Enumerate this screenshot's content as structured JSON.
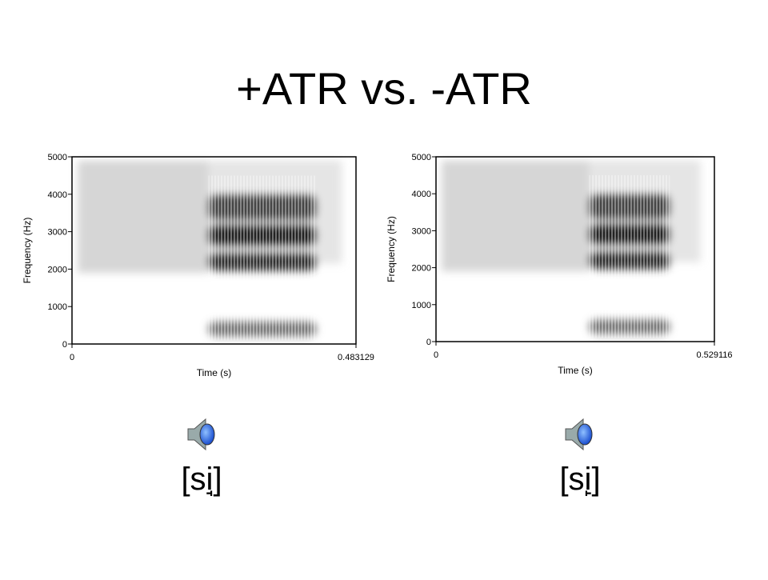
{
  "title": "+ATR vs. -ATR",
  "captions": [
    "[si̘]",
    "[si̙]"
  ],
  "chart_data": [
    {
      "type": "spectrogram",
      "xlabel": "Time (s)",
      "ylabel": "Frequency (Hz)",
      "xlim": [
        0,
        0.483129
      ],
      "xticks": [
        0,
        0.483129
      ],
      "ylim": [
        0,
        5000
      ],
      "yticks": [
        0,
        1000,
        2000,
        3000,
        4000,
        5000
      ]
    },
    {
      "type": "spectrogram",
      "xlabel": "Time (s)",
      "ylabel": "Frequency (Hz)",
      "xlim": [
        0,
        0.529116
      ],
      "xticks": [
        0,
        0.529116
      ],
      "ylim": [
        0,
        5000
      ],
      "yticks": [
        0,
        1000,
        2000,
        3000,
        4000,
        5000
      ]
    }
  ]
}
